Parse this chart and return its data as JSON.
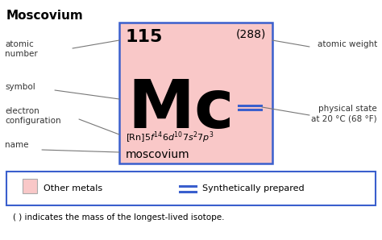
{
  "title": "Moscovium",
  "atomic_number": "115",
  "atomic_weight": "(288)",
  "symbol": "Mc",
  "name": "moscovium",
  "box_bg": "#f9c8c8",
  "box_border": "#3a5fcd",
  "double_line_color": "#3a5fcd",
  "legend_box_border": "#3a5fcd",
  "note_text": "( ) indicates the mass of the longest-lived isotope.",
  "legend_metal_label": "Other metals",
  "legend_synth_label": "Synthetically prepared",
  "bg_color": "#ffffff",
  "label_color": "#333333",
  "arrow_color": "#777777",
  "fig_w": 4.74,
  "fig_h": 2.98,
  "dpi": 100
}
